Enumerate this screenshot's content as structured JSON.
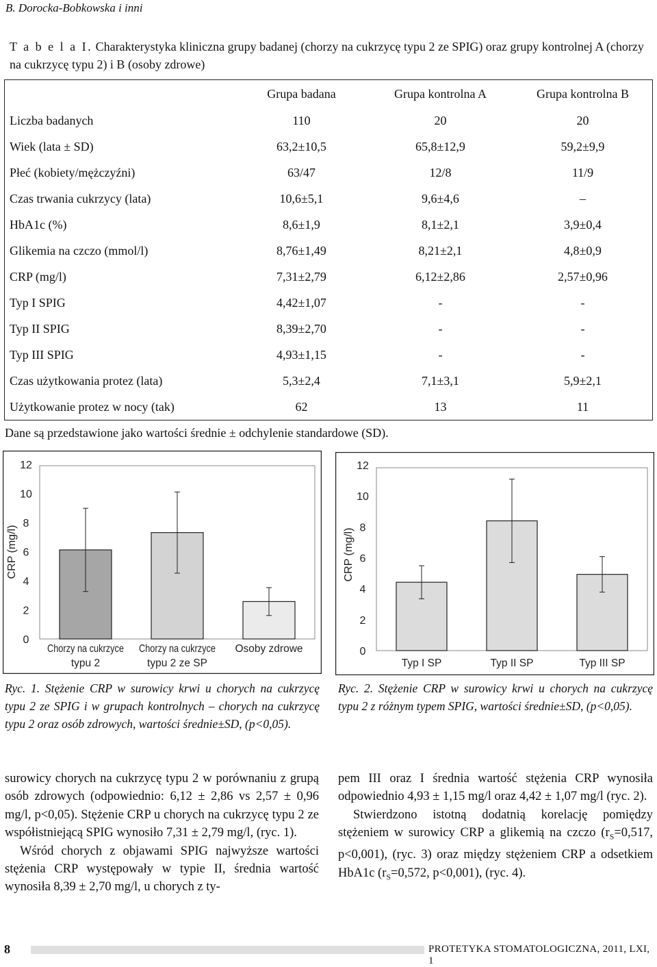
{
  "running_head": "B. Dorocka-Bobkowska i inni",
  "table": {
    "label": "T a b e l a  I.",
    "title": "Charakterystyka kliniczna grupy badanej (chorzy na cukrzycę typu 2 ze SPIG) oraz grupy kontrolnej A (chorzy na cukrzycę typu 2) i B (osoby zdrowe)",
    "headers": [
      "",
      "Grupa badana",
      "Grupa kontrolna A",
      "Grupa kontrolna B"
    ],
    "rows": [
      [
        "Liczba badanych",
        "110",
        "20",
        "20"
      ],
      [
        "Wiek (lata ± SD)",
        "63,2±10,5",
        "65,8±12,9",
        "59,2±9,9"
      ],
      [
        "Płeć (kobiety/mężczyźni)",
        "63/47",
        "12/8",
        "11/9"
      ],
      [
        "Czas trwania cukrzycy (lata)",
        "10,6±5,1",
        "9,6±4,6",
        "–"
      ],
      [
        "HbA1c (%)",
        "8,6±1,9",
        "8,1±2,1",
        "3,9±0,4"
      ],
      [
        "Glikemia na czczo (mmol/l)",
        "8,76±1,49",
        "8,21±2,1",
        "4,8±0,9"
      ],
      [
        "CRP (mg/l)",
        "7,31±2,79",
        "6,12±2,86",
        "2,57±0,96"
      ],
      [
        "Typ I SPIG",
        "4,42±1,07",
        "-",
        "-"
      ],
      [
        "Typ II SPIG",
        "8,39±2,70",
        "-",
        "-"
      ],
      [
        "Typ III SPIG",
        "4,93±1,15",
        "-",
        "-"
      ],
      [
        "Czas użytkowania protez (lata)",
        "5,3±2,4",
        "7,1±3,1",
        "5,9±2,1"
      ],
      [
        "Użytkowanie protez w nocy (tak)",
        "62",
        "13",
        "11"
      ]
    ],
    "note": "Dane są przedstawione jako wartości średnie ± odchylenie standardowe (SD)."
  },
  "chart_data": [
    {
      "type": "bar",
      "categories": [
        [
          "Chorzy na cukrzyce",
          "typu 2"
        ],
        [
          "Chorzy na cukrzyce",
          "typu 2 ze SP"
        ],
        [
          "Osoby zdrowe"
        ]
      ],
      "values": [
        6.12,
        7.31,
        2.57
      ],
      "errors": [
        2.86,
        2.79,
        0.96
      ],
      "ylabel": "CRP (mg/l)",
      "yticks": [
        0,
        2,
        4,
        6,
        8,
        10,
        12
      ],
      "ylim": [
        0,
        12
      ],
      "colors": [
        "#a6a6a6",
        "#d3d3d3",
        "#ebebeb"
      ],
      "grid": false
    },
    {
      "type": "bar",
      "categories": [
        [
          "Typ I  SP"
        ],
        [
          "Typ II SP"
        ],
        [
          "Typ III SP"
        ]
      ],
      "values": [
        4.42,
        8.39,
        4.93
      ],
      "errors": [
        1.07,
        2.7,
        1.15
      ],
      "ylabel": "CRP (mg/l)",
      "yticks": [
        0,
        2,
        4,
        6,
        8,
        10,
        12
      ],
      "ylim": [
        0,
        12
      ],
      "colors": [
        "#dcdcdc",
        "#dcdcdc",
        "#dcdcdc"
      ],
      "grid": false
    }
  ],
  "captions": {
    "fig1": "Ryc. 1. Stężenie CRP w surowicy krwi u chorych na cukrzycę typu 2 ze SPIG i w grupach kontrolnych – chorych na cukrzycę typu 2 oraz osób zdrowych, wartości średnie±SD, (p<0,05).",
    "fig2": "Ryc. 2. Stężenie CRP w surowicy krwi u chorych na cukrzycę typu 2 z różnym typem SPIG, wartości średnie±SD, (p<0,05)."
  },
  "body": {
    "left_p1": "surowicy chorych na cukrzycę typu 2 w porównaniu z grupą osób zdrowych (odpowiednio: 6,12 ± 2,86 vs 2,57 ± 0,96 mg/l, p<0,05). Stężenie CRP u chorych na cukrzycę typu 2 ze współistniejącą SPIG wynosiło 7,31 ± 2,79 mg/l, (ryc. 1).",
    "left_p2": "Wśród chorych z objawami SPIG najwyższe wartości stężenia CRP występowały w typie II, średnia wartość wynosiła 8,39 ± 2,70 mg/l, u chorych z ty-",
    "right_p1": "pem III oraz I średnia wartość stężenia CRP wynosiła odpowiednio 4,93 ± 1,15 mg/l oraz 4,42 ± 1,07 mg/l (ryc. 2).",
    "right_p2_a": "Stwierdzono istotną dodatnią korelację pomiędzy stężeniem w surowicy CRP a glikemią na czczo (r",
    "right_p2_sub1": "S",
    "right_p2_b": "=0,517, p<0,001), (ryc. 3) oraz między stężeniem CRP a odsetkiem HbA1c (r",
    "right_p2_sub2": "S",
    "right_p2_c": "=0,572, p<0,001), (ryc. 4)."
  },
  "footer": {
    "page_number": "8",
    "journal": "PROTETYKA STOMATOLOGICZNA, 2011, LXI, 1"
  }
}
